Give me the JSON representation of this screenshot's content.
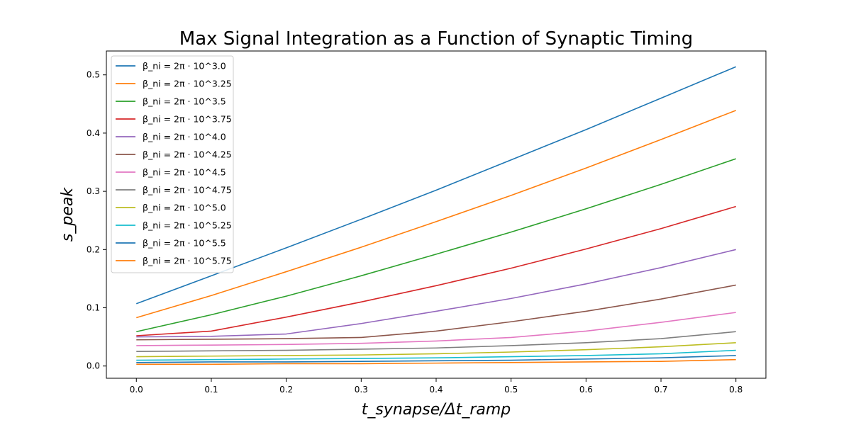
{
  "chart_data": {
    "type": "line",
    "title": "Max Signal Integration as a Function of Synaptic Timing",
    "xlabel": "t_synapse/Δt_ramp",
    "ylabel": "s_peak",
    "xlim": [
      -0.04,
      0.84
    ],
    "ylim": [
      -0.021,
      0.541
    ],
    "x_ticks": [
      0.0,
      0.1,
      0.2,
      0.3,
      0.4,
      0.5,
      0.6,
      0.7,
      0.8
    ],
    "x_tick_labels": [
      "0.0",
      "0.1",
      "0.2",
      "0.3",
      "0.4",
      "0.5",
      "0.6",
      "0.7",
      "0.8"
    ],
    "y_ticks": [
      0.0,
      0.1,
      0.2,
      0.3,
      0.4,
      0.5
    ],
    "y_tick_labels": [
      "0.0",
      "0.1",
      "0.2",
      "0.3",
      "0.4",
      "0.5"
    ],
    "grid": false,
    "legend_position": "top-left",
    "x": [
      0.0,
      0.1,
      0.2,
      0.3,
      0.4,
      0.5,
      0.6,
      0.7,
      0.8
    ],
    "series": [
      {
        "name": "β_ni = 2π · 10^3.0",
        "color": "#1f77b4",
        "values": [
          0.107,
          0.155,
          0.203,
          0.252,
          0.302,
          0.354,
          0.406,
          0.46,
          0.514
        ]
      },
      {
        "name": "β_ni = 2π · 10^3.25",
        "color": "#ff7f0e",
        "values": [
          0.083,
          0.121,
          0.162,
          0.204,
          0.248,
          0.293,
          0.34,
          0.389,
          0.439
        ]
      },
      {
        "name": "β_ni = 2π · 10^3.5",
        "color": "#2ca02c",
        "values": [
          0.059,
          0.088,
          0.12,
          0.155,
          0.192,
          0.23,
          0.27,
          0.312,
          0.356
        ]
      },
      {
        "name": "β_ni = 2π · 10^3.75",
        "color": "#d62728",
        "values": [
          0.052,
          0.06,
          0.084,
          0.11,
          0.138,
          0.168,
          0.201,
          0.236,
          0.274
        ]
      },
      {
        "name": "β_ni = 2π · 10^4.0",
        "color": "#9467bd",
        "values": [
          0.05,
          0.051,
          0.055,
          0.073,
          0.094,
          0.116,
          0.141,
          0.169,
          0.2
        ]
      },
      {
        "name": "β_ni = 2π · 10^4.25",
        "color": "#8c564b",
        "values": [
          0.045,
          0.046,
          0.047,
          0.049,
          0.06,
          0.076,
          0.094,
          0.115,
          0.139
        ]
      },
      {
        "name": "β_ni = 2π · 10^4.5",
        "color": "#e377c2",
        "values": [
          0.035,
          0.036,
          0.037,
          0.039,
          0.043,
          0.049,
          0.06,
          0.075,
          0.092
        ]
      },
      {
        "name": "β_ni = 2π · 10^4.75",
        "color": "#7f7f7f",
        "values": [
          0.025,
          0.026,
          0.027,
          0.029,
          0.031,
          0.035,
          0.04,
          0.047,
          0.059
        ]
      },
      {
        "name": "β_ni = 2π · 10^5.0",
        "color": "#bcbd22",
        "values": [
          0.016,
          0.017,
          0.018,
          0.019,
          0.021,
          0.024,
          0.028,
          0.033,
          0.04
        ]
      },
      {
        "name": "β_ni = 2π · 10^5.25",
        "color": "#17becf",
        "values": [
          0.01,
          0.011,
          0.012,
          0.013,
          0.014,
          0.016,
          0.018,
          0.021,
          0.027
        ]
      },
      {
        "name": "β_ni = 2π · 10^5.5",
        "color": "#1f77b4",
        "values": [
          0.006,
          0.007,
          0.007,
          0.008,
          0.009,
          0.01,
          0.012,
          0.014,
          0.018
        ]
      },
      {
        "name": "β_ni = 2π · 10^5.75",
        "color": "#ff7f0e",
        "values": [
          0.003,
          0.003,
          0.004,
          0.004,
          0.005,
          0.006,
          0.007,
          0.008,
          0.011
        ]
      }
    ]
  }
}
